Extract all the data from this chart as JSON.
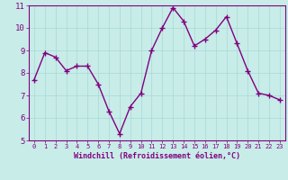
{
  "x": [
    0,
    1,
    2,
    3,
    4,
    5,
    6,
    7,
    8,
    9,
    10,
    11,
    12,
    13,
    14,
    15,
    16,
    17,
    18,
    19,
    20,
    21,
    22,
    23
  ],
  "y": [
    7.7,
    8.9,
    8.7,
    8.1,
    8.3,
    8.3,
    7.5,
    6.3,
    5.3,
    6.5,
    7.1,
    9.0,
    10.0,
    10.9,
    10.3,
    9.2,
    9.5,
    9.9,
    10.5,
    9.3,
    8.1,
    7.1,
    7.0,
    6.8
  ],
  "line_color": "#800080",
  "marker": "+",
  "marker_size": 4,
  "linewidth": 1.0,
  "xlabel": "Windchill (Refroidissement éolien,°C)",
  "xlabel_fontsize": 6.0,
  "ylim": [
    5,
    11
  ],
  "xlim": [
    -0.5,
    23.5
  ],
  "yticks": [
    5,
    6,
    7,
    8,
    9,
    10,
    11
  ],
  "xticks": [
    0,
    1,
    2,
    3,
    4,
    5,
    6,
    7,
    8,
    9,
    10,
    11,
    12,
    13,
    14,
    15,
    16,
    17,
    18,
    19,
    20,
    21,
    22,
    23
  ],
  "xtick_fontsize": 5.0,
  "ytick_fontsize": 6.5,
  "grid_color": "#a8d8d8",
  "bg_color": "#c8ece8",
  "tick_color": "#800080",
  "label_color": "#800080",
  "spine_color": "#800080"
}
